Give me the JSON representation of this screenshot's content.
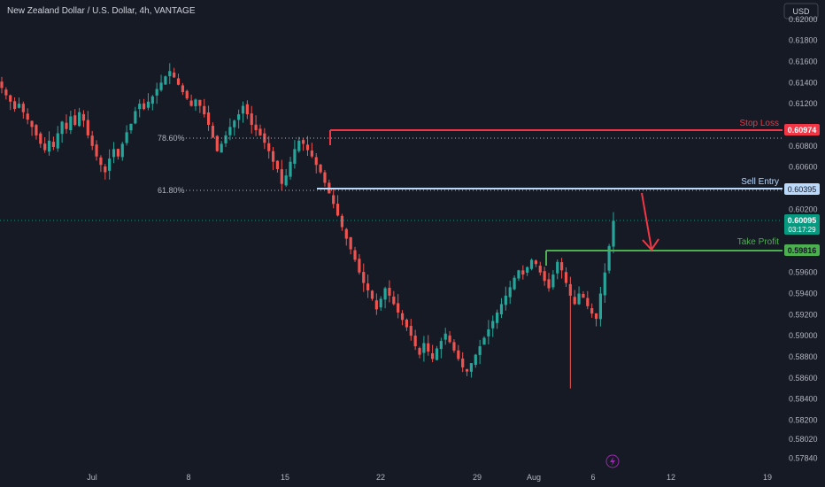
{
  "header": {
    "title": "New Zealand Dollar / U.S. Dollar, 4h, VANTAGE"
  },
  "currency_button": "USD",
  "colors": {
    "background": "#161a25",
    "up": "#26a69a",
    "down": "#ef5350",
    "stop_loss": "#f23645",
    "sell_entry": "#bbd9fb",
    "take_profit": "#4caf50",
    "current_price": "#089981"
  },
  "chart_data": {
    "type": "candlestick",
    "title": "New Zealand Dollar / U.S. Dollar, 4h, VANTAGE",
    "y_ticks": [
      "0.62000",
      "0.61800",
      "0.61600",
      "0.61400",
      "0.61200",
      "0.60800",
      "0.60600",
      "0.60200",
      "0.59600",
      "0.59400",
      "0.59200",
      "0.59000",
      "0.58800",
      "0.58600",
      "0.58400",
      "0.58200",
      "0.58020",
      "0.57840"
    ],
    "x_ticks": [
      "Jul",
      "8",
      "15",
      "22",
      "29",
      "Aug",
      "6",
      "12",
      "19"
    ],
    "ylim": [
      0.5775,
      0.621
    ],
    "candles_note": "approximate OHLC path read from the chart",
    "path": [
      0.6135,
      0.6128,
      0.6122,
      0.6115,
      0.612,
      0.6112,
      0.6105,
      0.6098,
      0.609,
      0.6082,
      0.6076,
      0.6085,
      0.6079,
      0.6092,
      0.6103,
      0.6096,
      0.6108,
      0.61,
      0.6112,
      0.6104,
      0.609,
      0.608,
      0.607,
      0.6062,
      0.6055,
      0.6068,
      0.6077,
      0.607,
      0.6082,
      0.6093,
      0.6101,
      0.6113,
      0.612,
      0.6115,
      0.6122,
      0.6127,
      0.6134,
      0.614,
      0.6146,
      0.6151,
      0.6145,
      0.6138,
      0.6131,
      0.6125,
      0.6118,
      0.6124,
      0.6118,
      0.611,
      0.61,
      0.6088,
      0.6075,
      0.6082,
      0.609,
      0.6098,
      0.6104,
      0.611,
      0.6118,
      0.611,
      0.61,
      0.6095,
      0.609,
      0.6083,
      0.6075,
      0.6065,
      0.6058,
      0.6044,
      0.6052,
      0.6065,
      0.6077,
      0.6085,
      0.6082,
      0.6076,
      0.607,
      0.6062,
      0.6055,
      0.6045,
      0.6035,
      0.6025,
      0.6014,
      0.6003,
      0.5992,
      0.5982,
      0.5972,
      0.596,
      0.595,
      0.5943,
      0.5935,
      0.5925,
      0.5935,
      0.5945,
      0.5938,
      0.593,
      0.5922,
      0.5915,
      0.5908,
      0.59,
      0.589,
      0.5882,
      0.5893,
      0.5885,
      0.5878,
      0.5888,
      0.5895,
      0.5902,
      0.5894,
      0.5886,
      0.5878,
      0.587,
      0.5866,
      0.5874,
      0.5882,
      0.589,
      0.5898,
      0.5906,
      0.5914,
      0.5922,
      0.593,
      0.5938,
      0.5946,
      0.5955,
      0.5962,
      0.5958,
      0.5965,
      0.5972,
      0.5968,
      0.596,
      0.5952,
      0.5945,
      0.5958,
      0.597,
      0.5962,
      0.595,
      0.5938,
      0.593,
      0.594,
      0.5936,
      0.5928,
      0.5921,
      0.5916,
      0.594,
      0.596,
      0.5985,
      0.6009
    ],
    "annotations": {
      "stop_loss": {
        "label": "Stop Loss",
        "price": "0.60974"
      },
      "sell_entry": {
        "label": "Sell Entry",
        "price": "0.60395"
      },
      "take_profit": {
        "label": "Take Profit",
        "price": "0.59816"
      },
      "current": {
        "price": "0.60095",
        "countdown": "03:17:29"
      },
      "fib_786": "78.60%",
      "fib_618": "61.80%"
    }
  }
}
